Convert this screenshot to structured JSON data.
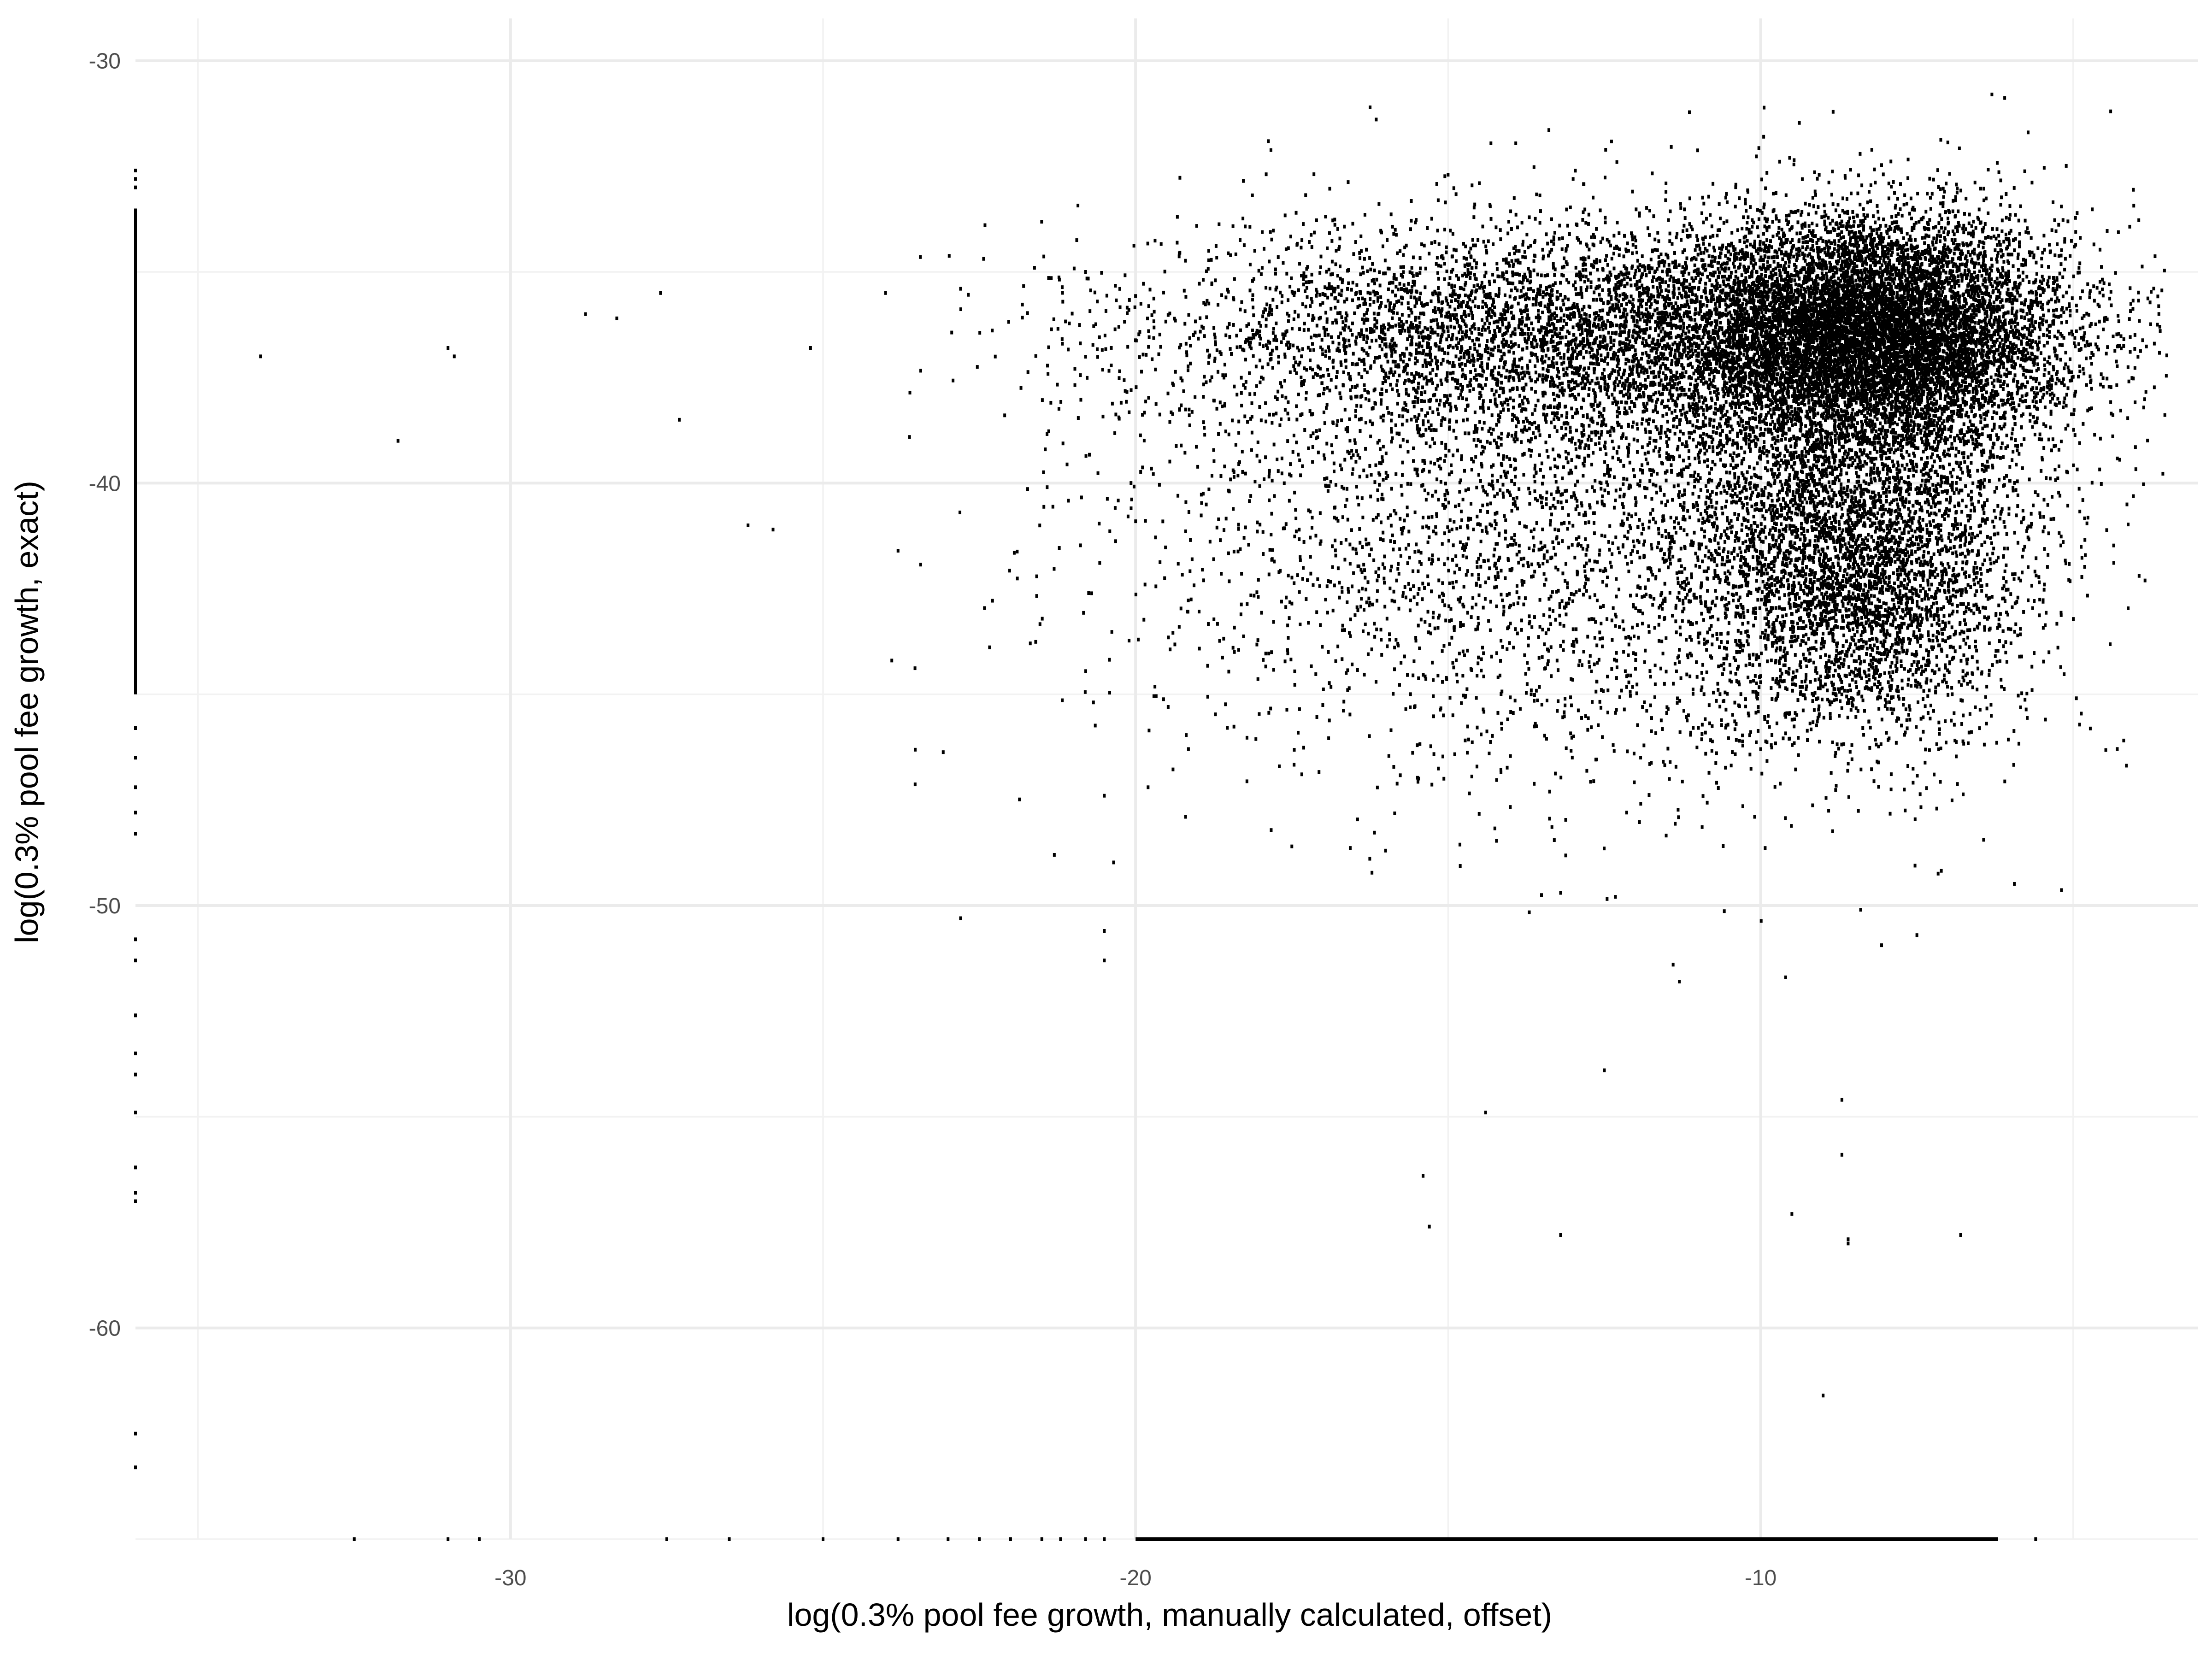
{
  "chart_data": {
    "type": "scatter",
    "title": "",
    "xlabel": "log(0.3% pool fee growth, manually calculated, offset)",
    "ylabel": "log(0.3% pool fee growth, exact)",
    "xlim": [
      -36,
      -3
    ],
    "ylim": [
      -65,
      -29
    ],
    "x_ticks": [
      -30,
      -20,
      -10
    ],
    "x_tick_labels": [
      "-30",
      "-20",
      "-10"
    ],
    "y_ticks": [
      -30,
      -40,
      -50,
      -60
    ],
    "y_tick_labels": [
      "-30",
      "-40",
      "-50",
      "-60"
    ],
    "grid": true,
    "legend": "none",
    "point_color": "#000000",
    "clusters": [
      {
        "name": "dense-core",
        "count": 9000,
        "center": [
          -8.2,
          -36.5
        ],
        "spread": [
          1.5,
          1.4
        ]
      },
      {
        "name": "upper-band",
        "count": 5000,
        "center": [
          -12.5,
          -36.5
        ],
        "spread": [
          3.5,
          1.3
        ]
      },
      {
        "name": "lower-lobe",
        "count": 4000,
        "center": [
          -8.5,
          -42.0
        ],
        "spread": [
          1.3,
          2.0
        ]
      },
      {
        "name": "diffuse",
        "count": 3500,
        "center": [
          -13.0,
          -41.0
        ],
        "spread": [
          3.5,
          3.0
        ]
      }
    ],
    "outliers": [
      {
        "x": -34.0,
        "y": -37.0
      },
      {
        "x": -31.8,
        "y": -39.0
      },
      {
        "x": -31.0,
        "y": -36.8
      },
      {
        "x": -30.9,
        "y": -37.0
      },
      {
        "x": -28.8,
        "y": -36.0
      },
      {
        "x": -28.3,
        "y": -36.1
      },
      {
        "x": -27.6,
        "y": -35.5
      },
      {
        "x": -27.3,
        "y": -38.5
      },
      {
        "x": -26.2,
        "y": -41.0
      },
      {
        "x": -25.8,
        "y": -41.1
      },
      {
        "x": -25.2,
        "y": -36.8
      },
      {
        "x": -24.0,
        "y": -35.5
      },
      {
        "x": -23.9,
        "y": -44.2
      },
      {
        "x": -23.8,
        "y": -41.6
      },
      {
        "x": -22.8,
        "y": -50.3
      },
      {
        "x": -22.8,
        "y": -35.4
      },
      {
        "x": -21.3,
        "y": -48.8
      },
      {
        "x": -20.5,
        "y": -51.3
      },
      {
        "x": -20.5,
        "y": -50.6
      },
      {
        "x": -20.8,
        "y": -35.0
      },
      {
        "x": -19.8,
        "y": -47.2
      },
      {
        "x": -19.2,
        "y": -47.9
      },
      {
        "x": -17.5,
        "y": -48.6
      },
      {
        "x": -16.0,
        "y": -48.7
      },
      {
        "x": -15.4,
        "y": -56.4
      },
      {
        "x": -15.3,
        "y": -57.6
      },
      {
        "x": -14.4,
        "y": -54.9
      },
      {
        "x": -13.2,
        "y": -49.7
      },
      {
        "x": -13.2,
        "y": -57.8
      },
      {
        "x": -12.5,
        "y": -53.9
      },
      {
        "x": -11.4,
        "y": -51.4
      },
      {
        "x": -11.3,
        "y": -51.8
      },
      {
        "x": -9.6,
        "y": -51.7
      },
      {
        "x": -9.5,
        "y": -57.3
      },
      {
        "x": -9.0,
        "y": -61.6
      },
      {
        "x": -8.7,
        "y": -54.6
      },
      {
        "x": -8.7,
        "y": -55.9
      },
      {
        "x": -8.6,
        "y": -57.9
      },
      {
        "x": -8.6,
        "y": -58.0
      },
      {
        "x": -8.4,
        "y": -50.1
      },
      {
        "x": -7.5,
        "y": -50.7
      },
      {
        "x": -6.8,
        "y": -57.8
      },
      {
        "x": -6.3,
        "y": -30.8
      },
      {
        "x": -4.4,
        "y": -31.2
      },
      {
        "x": -12.3,
        "y": -32.4
      },
      {
        "x": -13.0,
        "y": -32.8
      },
      {
        "x": -14.5,
        "y": -32.9
      },
      {
        "x": -15.0,
        "y": -32.7
      }
    ],
    "x_floor_rug": {
      "y": -65,
      "segments": [
        [
          -20,
          -6.2
        ]
      ],
      "points": [
        -32.5,
        -31.0,
        -30.5,
        -27.5,
        -26.5,
        -25.0,
        -23.8,
        -23.0,
        -22.5,
        -22.0,
        -21.5,
        -21.2,
        -20.8,
        -20.5,
        -5.6
      ]
    },
    "y_floor_rug": {
      "x": -36,
      "segments": [
        [
          -33.5,
          -45
        ]
      ],
      "points": [
        -32.6,
        -32.8,
        -33.0,
        -45.8,
        -46.5,
        -47.2,
        -47.8,
        -48.3,
        -50.8,
        -51.3,
        -52.6,
        -53.5,
        -54.0,
        -54.9,
        -56.2,
        -56.8,
        -57.0,
        -62.5,
        -63.3
      ]
    }
  }
}
